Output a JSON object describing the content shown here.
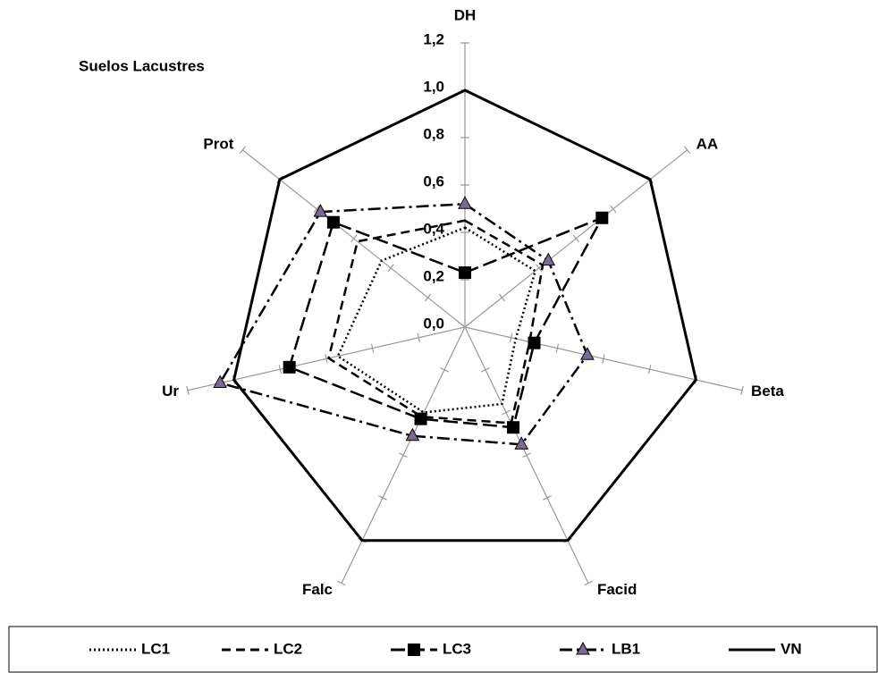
{
  "chart_data": {
    "type": "radar",
    "title": "Suelos Lacustres",
    "categories": [
      "DH",
      "AA",
      "Beta",
      "Facid",
      "Falc",
      "Ur",
      "Prot"
    ],
    "ylim": [
      0,
      1.2
    ],
    "yticks": [
      {
        "value": 0,
        "label": "0,0"
      },
      {
        "value": 0.2,
        "label": "0,2"
      },
      {
        "value": 0.4,
        "label": "0,4"
      },
      {
        "value": 0.6,
        "label": "0,6"
      },
      {
        "value": 0.8,
        "label": "0,8"
      },
      {
        "value": 1.0,
        "label": "1,0"
      },
      {
        "value": 1.2,
        "label": "1,2"
      }
    ],
    "series": [
      {
        "name": "LC1",
        "color": "#000000",
        "line_style": "dotted",
        "values": [
          0.42,
          0.38,
          0.22,
          0.36,
          0.4,
          0.55,
          0.45
        ]
      },
      {
        "name": "LC2",
        "color": "#000000",
        "line_style": "dashed",
        "values": [
          0.45,
          0.42,
          0.28,
          0.45,
          0.42,
          0.59,
          0.58
        ]
      },
      {
        "name": "LC3",
        "color": "#000000",
        "line_style": "long-dash",
        "marker": "square",
        "values": [
          0.23,
          0.74,
          0.3,
          0.47,
          0.43,
          0.76,
          0.71
        ]
      },
      {
        "name": "LB1",
        "color": "#000000",
        "line_style": "dash-dot",
        "marker": "triangle",
        "marker_color": "#7b6a96",
        "values": [
          0.52,
          0.45,
          0.53,
          0.55,
          0.51,
          1.06,
          0.78
        ]
      },
      {
        "name": "VN",
        "color": "#000000",
        "line_style": "solid",
        "values": [
          1.0,
          1.0,
          1.0,
          1.0,
          1.0,
          1.0,
          1.0
        ]
      }
    ],
    "legend": "bottom"
  }
}
